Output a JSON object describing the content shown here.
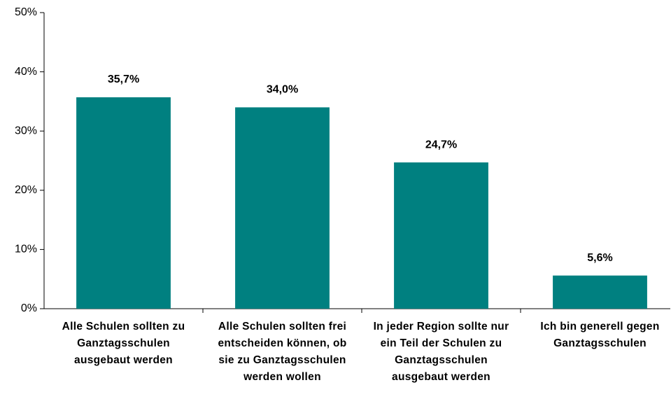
{
  "chart_data": {
    "type": "bar",
    "categories": [
      "Alle Schulen sollten zu Ganztagsschulen ausgebaut werden",
      "Alle Schulen sollten frei entscheiden können, ob sie zu Ganztagsschulen werden wollen",
      "In jeder Region sollte nur ein Teil der Schulen zu Ganztagsschulen ausgebaut werden",
      "Ich bin generell gegen Ganztagsschulen"
    ],
    "values": [
      35.7,
      34.0,
      24.7,
      5.6
    ],
    "value_labels": [
      "35,7%",
      "34,0%",
      "24,7%",
      "5,6%"
    ],
    "color": "#008080",
    "ylim": [
      0,
      50
    ],
    "yticks": [
      {
        "value": 0,
        "label": "0%"
      },
      {
        "value": 10,
        "label": "10%"
      },
      {
        "value": 20,
        "label": "20%"
      },
      {
        "value": 30,
        "label": "30%"
      },
      {
        "value": 40,
        "label": "40%"
      },
      {
        "value": 50,
        "label": "50%"
      }
    ],
    "grid": false
  }
}
